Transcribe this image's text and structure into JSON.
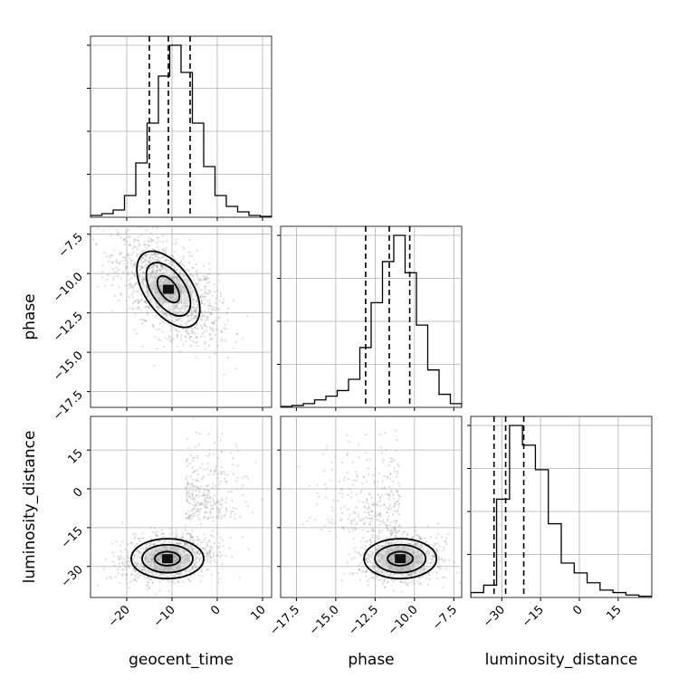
{
  "chart_data": {
    "type": "corner",
    "parameters": [
      {
        "name": "geocent_time",
        "label": "geocent_time",
        "range": [
          -28,
          12
        ],
        "ticks": [
          -20,
          -10,
          0,
          10
        ],
        "tick_labels": [
          "−20",
          "−10",
          "0",
          "10"
        ],
        "quantiles": [
          -15.0,
          -10.8,
          -6.0
        ],
        "hist": [
          1,
          2,
          4,
          12,
          30,
          52,
          78,
          95,
          80,
          52,
          28,
          12,
          6,
          3,
          1,
          0.5
        ]
      },
      {
        "name": "phase",
        "label": "phase",
        "range": [
          -18.5,
          -7
        ],
        "ticks": [
          -17.5,
          -15.0,
          -12.5,
          -10.0,
          -7.5
        ],
        "tick_labels": [
          "−17.5",
          "−15.0",
          "−12.5",
          "−10.0",
          "−7.5"
        ],
        "quantiles": [
          -13.1,
          -11.6,
          -10.3
        ],
        "hist": [
          0.5,
          1,
          2,
          4,
          6,
          9,
          15,
          32,
          56,
          78,
          92,
          72,
          44,
          20,
          7,
          2
        ]
      },
      {
        "name": "luminosity_distance",
        "label": "luminosity_distance",
        "range": [
          -42,
          28
        ],
        "ticks": [
          -30,
          -15,
          0,
          15
        ],
        "tick_labels": [
          "−30",
          "−15",
          "0",
          "15"
        ],
        "quantiles": [
          -33.0,
          -28.5,
          -21.5
        ],
        "hist": [
          2,
          5,
          40,
          70,
          62,
          52,
          30,
          14,
          10,
          6,
          3,
          2,
          1,
          0.5
        ]
      }
    ],
    "density_peaks": {
      "phase_vs_geocent_time": {
        "x": -10.8,
        "y": -11.0
      },
      "luminosity_distance_vs_geocent_time": {
        "x": -11.0,
        "y": -27.0
      },
      "luminosity_distance_vs_phase": {
        "x": -10.9,
        "y": -27.0
      }
    },
    "grid": true
  }
}
